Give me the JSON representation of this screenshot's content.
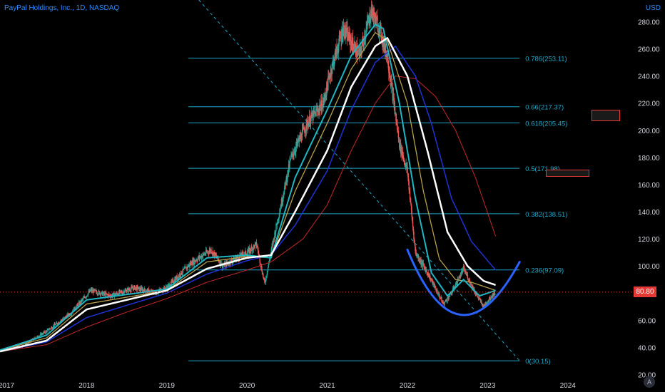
{
  "header": {
    "title": "PayPal Holdings, Inc., 1D, NASDAQ",
    "currency": "USD"
  },
  "last_price": {
    "label": "80.80",
    "value": 80.8,
    "color": "#e53935"
  },
  "auto_button": {
    "label": "A"
  },
  "colors": {
    "up": "#26a69a",
    "down": "#ef5350",
    "fib": "#1fa8c9",
    "diag": "#1fa8c9",
    "ma_white": "#ffffff",
    "ma_teal": "#1fb6c3",
    "ma_olive": "#b8a04a",
    "ma_blue": "#1e33d6",
    "ma_red": "#c62828",
    "arc": "#2962ff"
  },
  "chart_data": {
    "type": "line",
    "title": "PayPal Holdings, Inc., 1D, NASDAQ",
    "xlabel": "",
    "ylabel": "",
    "ylim": [
      14.5,
      296
    ],
    "xlim": [
      2016.92,
      2024.75
    ],
    "x_ticks": [
      "2017",
      "2018",
      "2019",
      "2020",
      "2021",
      "2022",
      "2023",
      "2024"
    ],
    "y_ticks": [
      "20.00",
      "40.00",
      "60.00",
      "80.00",
      "100.00",
      "120.00",
      "140.00",
      "160.00",
      "180.00",
      "200.00",
      "220.00",
      "240.00",
      "260.00",
      "280.00"
    ],
    "price_anchors": [
      [
        2016.92,
        38
      ],
      [
        2017.2,
        41
      ],
      [
        2017.5,
        52
      ],
      [
        2017.8,
        65
      ],
      [
        2018.05,
        82
      ],
      [
        2018.3,
        78
      ],
      [
        2018.6,
        84
      ],
      [
        2018.85,
        80
      ],
      [
        2019.0,
        84
      ],
      [
        2019.3,
        102
      ],
      [
        2019.55,
        112
      ],
      [
        2019.7,
        100
      ],
      [
        2020.0,
        110
      ],
      [
        2020.12,
        116
      ],
      [
        2020.22,
        87
      ],
      [
        2020.35,
        125
      ],
      [
        2020.55,
        180
      ],
      [
        2020.75,
        205
      ],
      [
        2020.95,
        220
      ],
      [
        2021.05,
        245
      ],
      [
        2021.2,
        275
      ],
      [
        2021.4,
        255
      ],
      [
        2021.55,
        288
      ],
      [
        2021.65,
        275
      ],
      [
        2021.75,
        255
      ],
      [
        2021.9,
        190
      ],
      [
        2022.0,
        170
      ],
      [
        2022.1,
        110
      ],
      [
        2022.25,
        95
      ],
      [
        2022.45,
        72
      ],
      [
        2022.55,
        80
      ],
      [
        2022.7,
        98
      ],
      [
        2022.85,
        80
      ],
      [
        2022.95,
        70
      ],
      [
        2023.05,
        78
      ],
      [
        2023.1,
        80.8
      ]
    ],
    "series": [
      {
        "key": "ma_white",
        "width": 2.5,
        "points": [
          [
            2016.92,
            37
          ],
          [
            2017.5,
            45
          ],
          [
            2018.0,
            68
          ],
          [
            2018.5,
            75
          ],
          [
            2019.0,
            82
          ],
          [
            2019.5,
            98
          ],
          [
            2020.0,
            106
          ],
          [
            2020.3,
            108
          ],
          [
            2020.6,
            140
          ],
          [
            2021.0,
            185
          ],
          [
            2021.3,
            232
          ],
          [
            2021.6,
            262
          ],
          [
            2021.75,
            268
          ],
          [
            2022.0,
            240
          ],
          [
            2022.25,
            185
          ],
          [
            2022.5,
            125
          ],
          [
            2022.75,
            100
          ],
          [
            2022.95,
            89
          ],
          [
            2023.1,
            86
          ]
        ]
      },
      {
        "key": "ma_teal",
        "width": 2,
        "points": [
          [
            2016.92,
            38
          ],
          [
            2017.5,
            49
          ],
          [
            2018.0,
            75
          ],
          [
            2018.5,
            79
          ],
          [
            2019.0,
            83
          ],
          [
            2019.5,
            106
          ],
          [
            2020.0,
            108
          ],
          [
            2020.3,
            106
          ],
          [
            2020.6,
            165
          ],
          [
            2021.0,
            215
          ],
          [
            2021.3,
            255
          ],
          [
            2021.6,
            278
          ],
          [
            2021.7,
            275
          ],
          [
            2021.9,
            220
          ],
          [
            2022.1,
            150
          ],
          [
            2022.3,
            95
          ],
          [
            2022.5,
            78
          ],
          [
            2022.7,
            90
          ],
          [
            2022.9,
            78
          ],
          [
            2023.1,
            82
          ]
        ]
      },
      {
        "key": "ma_olive",
        "width": 1.3,
        "points": [
          [
            2016.92,
            38
          ],
          [
            2017.5,
            47
          ],
          [
            2018.0,
            72
          ],
          [
            2018.5,
            77
          ],
          [
            2019.0,
            82
          ],
          [
            2019.5,
            103
          ],
          [
            2020.0,
            107
          ],
          [
            2020.3,
            106
          ],
          [
            2020.6,
            155
          ],
          [
            2021.0,
            205
          ],
          [
            2021.3,
            245
          ],
          [
            2021.6,
            272
          ],
          [
            2021.75,
            266
          ],
          [
            2022.0,
            220
          ],
          [
            2022.2,
            155
          ],
          [
            2022.4,
            105
          ],
          [
            2022.6,
            90
          ],
          [
            2022.8,
            88
          ],
          [
            2023.1,
            82
          ]
        ]
      },
      {
        "key": "ma_blue",
        "width": 1.5,
        "points": [
          [
            2016.92,
            37
          ],
          [
            2017.5,
            44
          ],
          [
            2018.0,
            62
          ],
          [
            2018.5,
            71
          ],
          [
            2019.0,
            80
          ],
          [
            2019.5,
            94
          ],
          [
            2020.0,
            104
          ],
          [
            2020.3,
            108
          ],
          [
            2020.6,
            130
          ],
          [
            2021.0,
            170
          ],
          [
            2021.3,
            215
          ],
          [
            2021.6,
            250
          ],
          [
            2021.85,
            262
          ],
          [
            2022.1,
            240
          ],
          [
            2022.3,
            205
          ],
          [
            2022.55,
            150
          ],
          [
            2022.8,
            118
          ],
          [
            2023.1,
            97
          ]
        ]
      },
      {
        "key": "ma_red",
        "width": 1,
        "points": [
          [
            2016.92,
            37
          ],
          [
            2017.5,
            42
          ],
          [
            2018.0,
            55
          ],
          [
            2018.5,
            66
          ],
          [
            2019.0,
            76
          ],
          [
            2019.5,
            88
          ],
          [
            2020.0,
            97
          ],
          [
            2020.3,
            103
          ],
          [
            2020.7,
            120
          ],
          [
            2021.0,
            145
          ],
          [
            2021.3,
            185
          ],
          [
            2021.6,
            220
          ],
          [
            2021.85,
            240
          ],
          [
            2022.1,
            238
          ],
          [
            2022.35,
            225
          ],
          [
            2022.6,
            200
          ],
          [
            2022.85,
            165
          ],
          [
            2023.1,
            122
          ]
        ]
      }
    ],
    "fib_levels": [
      {
        "ratio": "0.786",
        "price": 253.11,
        "label": "0.786(253.11)"
      },
      {
        "ratio": "0.66",
        "price": 217.37,
        "label": "0.66(217.37)"
      },
      {
        "ratio": "0.618",
        "price": 205.45,
        "label": "0.618(205.45)"
      },
      {
        "ratio": "0.5",
        "price": 171.98,
        "label": "0.5(171.98)"
      },
      {
        "ratio": "0.382",
        "price": 138.51,
        "label": "0.382(138.51)"
      },
      {
        "ratio": "0.236",
        "price": 97.09,
        "label": "0.236(97.09)"
      },
      {
        "ratio": "0",
        "price": 30.15,
        "label": "0(30.15)"
      }
    ],
    "fib_range": [
      2019.27,
      2023.4
    ],
    "trendline": [
      [
        2019.4,
        296
      ],
      [
        2023.4,
        30.15
      ]
    ],
    "arc": {
      "start": [
        2022.0,
        112
      ],
      "bottom": [
        2022.67,
        64
      ],
      "end": [
        2023.4,
        103
      ]
    },
    "boxes": [
      {
        "start": 2024.3,
        "end": 2024.63,
        "high": 215,
        "low": 208
      },
      {
        "start": 2023.73,
        "end": 2024.25,
        "high": 171,
        "low": 167
      }
    ]
  }
}
